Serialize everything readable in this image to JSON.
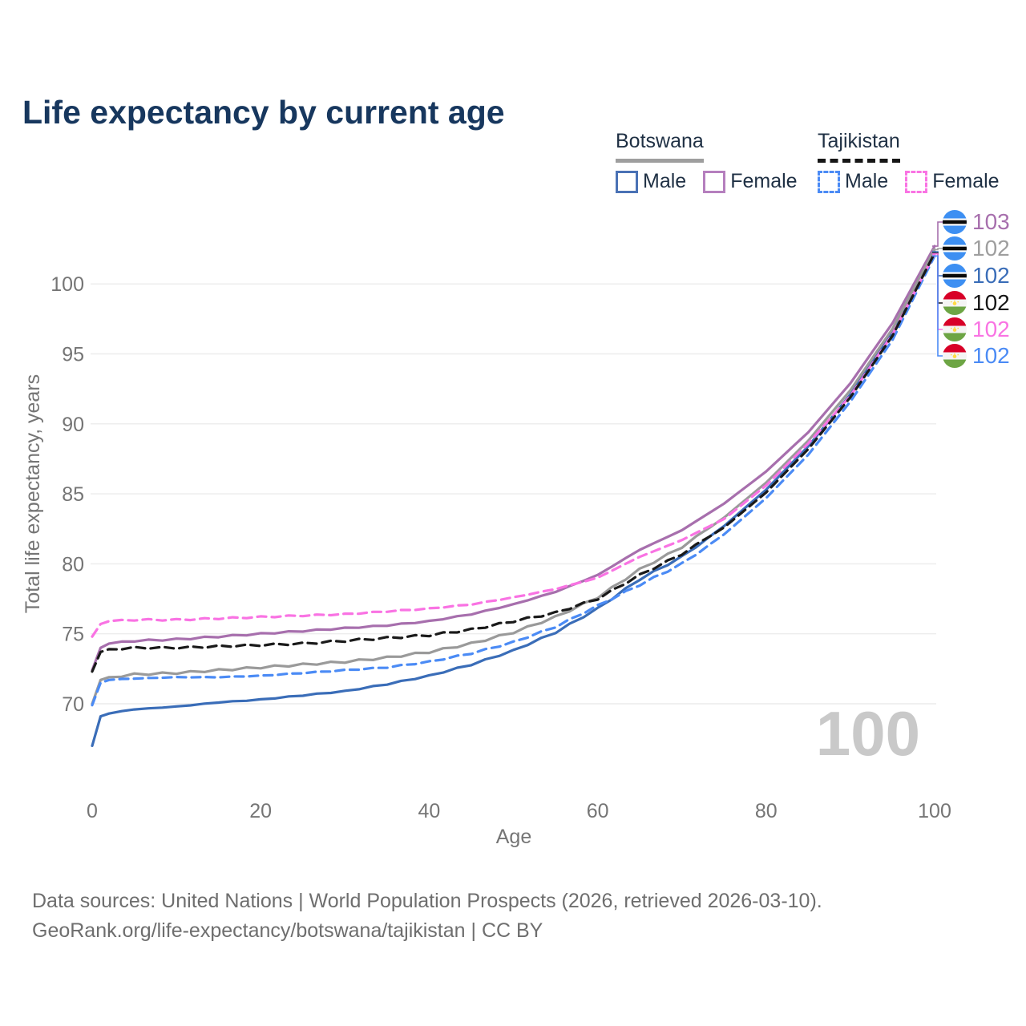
{
  "title": "Life expectancy by current age",
  "legend": {
    "groups": [
      {
        "country": "Botswana",
        "style": "solid",
        "items": [
          {
            "label": "Male"
          },
          {
            "label": "Female"
          }
        ]
      },
      {
        "country": "Tajikistan",
        "style": "dashed",
        "items": [
          {
            "label": "Male"
          },
          {
            "label": "Female"
          }
        ]
      }
    ]
  },
  "watermark_age": "100",
  "end_labels": [
    {
      "value": "103",
      "flag": "botswana",
      "series": "Botswana Female",
      "color": "#a76fad"
    },
    {
      "value": "102",
      "flag": "botswana",
      "series": "Botswana (both sexes)",
      "color": "#9e9e9e"
    },
    {
      "value": "102",
      "flag": "botswana",
      "series": "Botswana Male",
      "color": "#3a6db8"
    },
    {
      "value": "102",
      "flag": "tajikistan",
      "series": "Tajikistan (both sexes)",
      "color": "#161616"
    },
    {
      "value": "102",
      "flag": "tajikistan",
      "series": "Tajikistan Female",
      "color": "#f973e3"
    },
    {
      "value": "102",
      "flag": "tajikistan",
      "series": "Tajikistan Male",
      "color": "#4b8bf5"
    }
  ],
  "footer": {
    "line1": "Data sources: United Nations | World Population Prospects (2026, retrieved 2026-03-10).",
    "line2": "GeoRank.org/life-expectancy/botswana/tajikistan | CC BY"
  },
  "chart_data": {
    "type": "line",
    "title": "Life expectancy by current age",
    "xlabel": "Age",
    "ylabel": "Total life expectancy, years",
    "xlim": [
      0,
      100
    ],
    "ylim": [
      66.5,
      104.5
    ],
    "x_ticks": [
      0,
      20,
      40,
      60,
      80,
      100
    ],
    "y_ticks": [
      70,
      75,
      80,
      85,
      90,
      95,
      100
    ],
    "grid": "horizontal",
    "legend_position": "top-right",
    "series": [
      {
        "name": "Botswana Male",
        "country": "Botswana",
        "sex": "male",
        "style": "solid",
        "color": "#3a6db8",
        "points": [
          [
            0,
            67.0
          ],
          [
            1,
            69.1
          ],
          [
            2,
            69.3
          ],
          [
            5,
            69.6
          ],
          [
            10,
            69.8
          ],
          [
            15,
            70.1
          ],
          [
            20,
            70.3
          ],
          [
            25,
            70.6
          ],
          [
            30,
            70.9
          ],
          [
            35,
            71.4
          ],
          [
            40,
            72.0
          ],
          [
            45,
            72.8
          ],
          [
            50,
            73.8
          ],
          [
            55,
            75.1
          ],
          [
            60,
            76.8
          ],
          [
            65,
            78.9
          ],
          [
            70,
            80.5
          ],
          [
            75,
            82.7
          ],
          [
            80,
            85.3
          ],
          [
            85,
            88.4
          ],
          [
            90,
            92.1
          ],
          [
            95,
            96.6
          ],
          [
            100,
            102.3
          ]
        ]
      },
      {
        "name": "Botswana Female",
        "country": "Botswana",
        "sex": "female",
        "style": "solid",
        "color": "#a76fad",
        "points": [
          [
            0,
            72.4
          ],
          [
            1,
            74.0
          ],
          [
            2,
            74.3
          ],
          [
            5,
            74.5
          ],
          [
            10,
            74.6
          ],
          [
            15,
            74.8
          ],
          [
            20,
            75.0
          ],
          [
            25,
            75.2
          ],
          [
            30,
            75.4
          ],
          [
            35,
            75.6
          ],
          [
            40,
            75.9
          ],
          [
            45,
            76.4
          ],
          [
            50,
            77.1
          ],
          [
            55,
            78.0
          ],
          [
            60,
            79.2
          ],
          [
            65,
            81.0
          ],
          [
            70,
            82.4
          ],
          [
            75,
            84.3
          ],
          [
            80,
            86.6
          ],
          [
            85,
            89.4
          ],
          [
            90,
            92.9
          ],
          [
            95,
            97.2
          ],
          [
            100,
            102.7
          ]
        ]
      },
      {
        "name": "Botswana (both sexes)",
        "country": "Botswana",
        "sex": "both",
        "style": "solid",
        "color": "#9a9a9a",
        "points": [
          [
            0,
            70.0
          ],
          [
            1,
            71.7
          ],
          [
            2,
            71.9
          ],
          [
            5,
            72.1
          ],
          [
            10,
            72.2
          ],
          [
            15,
            72.4
          ],
          [
            20,
            72.6
          ],
          [
            25,
            72.8
          ],
          [
            30,
            73.0
          ],
          [
            35,
            73.3
          ],
          [
            40,
            73.7
          ],
          [
            45,
            74.3
          ],
          [
            50,
            75.1
          ],
          [
            55,
            76.2
          ],
          [
            60,
            77.6
          ],
          [
            65,
            79.6
          ],
          [
            70,
            81.2
          ],
          [
            75,
            83.3
          ],
          [
            80,
            85.8
          ],
          [
            85,
            88.8
          ],
          [
            90,
            92.4
          ],
          [
            95,
            96.8
          ],
          [
            100,
            102.45
          ]
        ]
      },
      {
        "name": "Tajikistan Male",
        "country": "Tajikistan",
        "sex": "male",
        "style": "dashed",
        "color": "#4b8bf5",
        "points": [
          [
            0,
            69.9
          ],
          [
            1,
            71.5
          ],
          [
            2,
            71.7
          ],
          [
            5,
            71.8
          ],
          [
            10,
            71.9
          ],
          [
            15,
            71.9
          ],
          [
            20,
            72.0
          ],
          [
            25,
            72.2
          ],
          [
            30,
            72.4
          ],
          [
            35,
            72.6
          ],
          [
            40,
            73.0
          ],
          [
            45,
            73.6
          ],
          [
            50,
            74.4
          ],
          [
            55,
            75.5
          ],
          [
            60,
            77.0
          ],
          [
            65,
            78.5
          ],
          [
            70,
            80.0
          ],
          [
            75,
            82.1
          ],
          [
            80,
            84.7
          ],
          [
            85,
            87.8
          ],
          [
            90,
            91.6
          ],
          [
            95,
            96.0
          ],
          [
            100,
            102.0
          ]
        ]
      },
      {
        "name": "Tajikistan Female",
        "country": "Tajikistan",
        "sex": "female",
        "style": "dashed",
        "color": "#f973e3",
        "points": [
          [
            0,
            74.8
          ],
          [
            1,
            75.7
          ],
          [
            2,
            75.9
          ],
          [
            5,
            76.0
          ],
          [
            10,
            76.0
          ],
          [
            15,
            76.1
          ],
          [
            20,
            76.2
          ],
          [
            25,
            76.3
          ],
          [
            30,
            76.4
          ],
          [
            35,
            76.6
          ],
          [
            40,
            76.8
          ],
          [
            45,
            77.1
          ],
          [
            50,
            77.6
          ],
          [
            55,
            78.2
          ],
          [
            60,
            79.0
          ],
          [
            65,
            80.5
          ],
          [
            70,
            81.7
          ],
          [
            75,
            83.2
          ],
          [
            80,
            85.6
          ],
          [
            85,
            88.6
          ],
          [
            90,
            92.0
          ],
          [
            95,
            96.4
          ],
          [
            100,
            102.15
          ]
        ]
      },
      {
        "name": "Tajikistan (both sexes)",
        "country": "Tajikistan",
        "sex": "both",
        "style": "dashed",
        "color": "#1a1a1a",
        "points": [
          [
            0,
            72.3
          ],
          [
            1,
            73.7
          ],
          [
            2,
            73.9
          ],
          [
            5,
            74.0
          ],
          [
            10,
            74.0
          ],
          [
            15,
            74.1
          ],
          [
            20,
            74.2
          ],
          [
            25,
            74.3
          ],
          [
            30,
            74.5
          ],
          [
            35,
            74.7
          ],
          [
            40,
            74.9
          ],
          [
            45,
            75.3
          ],
          [
            50,
            75.9
          ],
          [
            55,
            76.5
          ],
          [
            60,
            77.5
          ],
          [
            65,
            79.2
          ],
          [
            70,
            80.7
          ],
          [
            75,
            82.6
          ],
          [
            80,
            85.1
          ],
          [
            85,
            88.2
          ],
          [
            90,
            91.9
          ],
          [
            95,
            96.3
          ],
          [
            100,
            102.2
          ]
        ]
      }
    ],
    "end_values": {
      "Botswana Female": 103,
      "Botswana (both sexes)": 102,
      "Botswana Male": 102,
      "Tajikistan (both sexes)": 102,
      "Tajikistan Female": 102,
      "Tajikistan Male": 102
    }
  }
}
